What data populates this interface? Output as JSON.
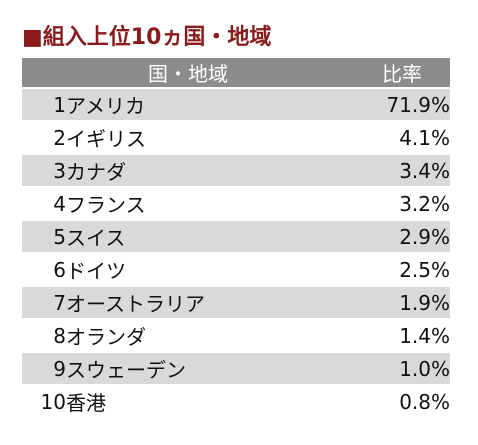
{
  "title": "■組入上位10ヵ国・地域",
  "table": {
    "headers": {
      "country": "国・地域",
      "ratio": "比率"
    }
  },
  "chart_data": {
    "type": "table",
    "title": "■組入上位10ヵ国・地域",
    "columns": [
      "国・地域",
      "比率"
    ],
    "rows": [
      {
        "rank": "1",
        "name": "アメリカ",
        "value": "71.9%"
      },
      {
        "rank": "2",
        "name": "イギリス",
        "value": "4.1%"
      },
      {
        "rank": "3",
        "name": "カナダ",
        "value": "3.4%"
      },
      {
        "rank": "4",
        "name": "フランス",
        "value": "3.2%"
      },
      {
        "rank": "5",
        "name": "スイス",
        "value": "2.9%"
      },
      {
        "rank": "6",
        "name": "ドイツ",
        "value": "2.5%"
      },
      {
        "rank": "7",
        "name": "オーストラリア",
        "value": "1.9%"
      },
      {
        "rank": "8",
        "name": "オランダ",
        "value": "1.4%"
      },
      {
        "rank": "9",
        "name": "スウェーデン",
        "value": "1.0%"
      },
      {
        "rank": "10",
        "name": "香港",
        "value": "0.8%"
      }
    ]
  },
  "colors": {
    "title": "#8b1a1a",
    "header": "#8c8c8c",
    "stripe": "#d9d9d9"
  }
}
